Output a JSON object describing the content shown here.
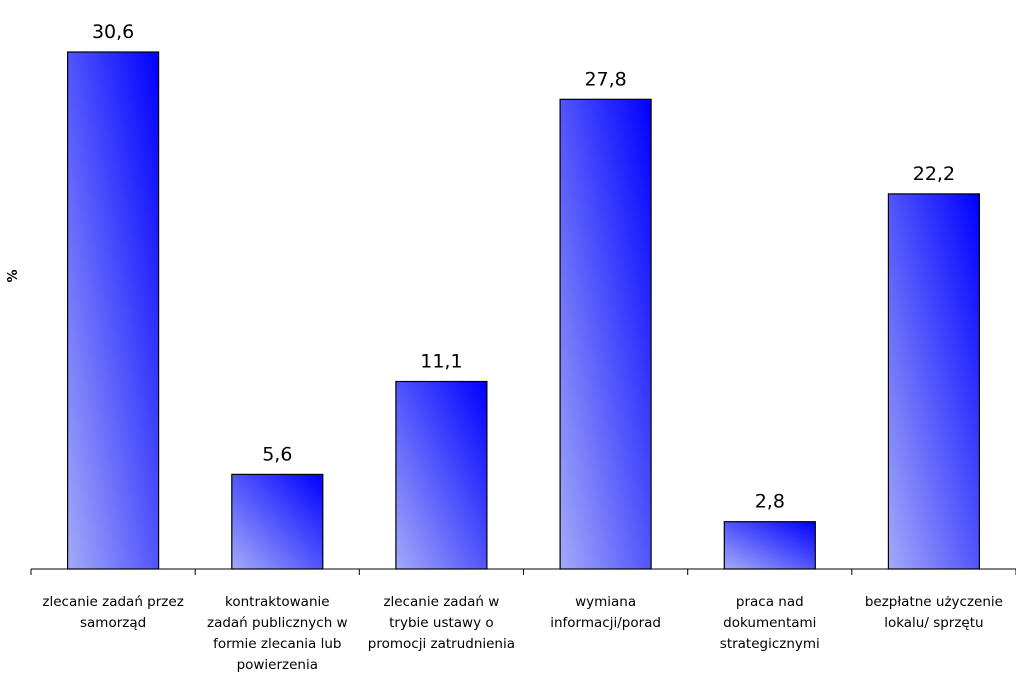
{
  "chart_data": {
    "type": "bar",
    "title": "",
    "xlabel": "",
    "ylabel": "%",
    "ylim": [
      0,
      32
    ],
    "grid": false,
    "legend": "none",
    "categories": [
      "zlecanie zadań przez samorząd",
      "kontraktowanie zadań publicznych w formie zlecania lub powierzenia",
      "zlecanie zadań w trybie ustawy o promocji zatrudnienia",
      "wymiana informacji/porad",
      "praca nad dokumentami strategicznymi",
      "bezpłatne użyczenie lokalu/ sprzętu"
    ],
    "category_lines": [
      [
        "zlecanie zadań przez",
        "samorząd"
      ],
      [
        "kontraktowanie",
        "zadań publicznych w",
        "formie zlecania lub",
        "powierzenia"
      ],
      [
        "zlecanie zadań w",
        "trybie ustawy o",
        "promocji zatrudnienia"
      ],
      [
        "wymiana",
        "informacji/porad"
      ],
      [
        "praca nad",
        "dokumentami",
        "strategicznymi"
      ],
      [
        "bezpłatne użyczenie",
        "lokalu/ sprzętu"
      ]
    ],
    "values": [
      30.6,
      5.6,
      11.1,
      27.8,
      2.8,
      22.2
    ],
    "data_labels": [
      "30,6",
      "5,6",
      "11,1",
      "27,8",
      "2,8",
      "22,2"
    ],
    "colors": {
      "bar_light": "#a3aaf8",
      "bar_dark": "#0000ff",
      "bar_stroke": "#000000",
      "axis": "#000000"
    }
  }
}
